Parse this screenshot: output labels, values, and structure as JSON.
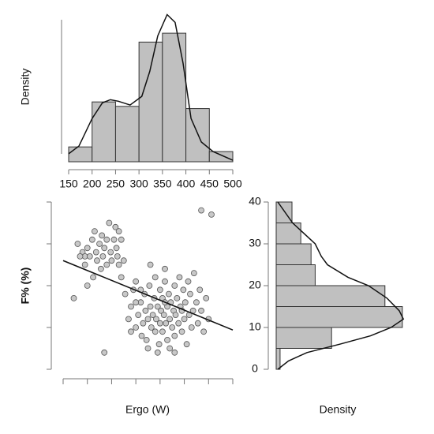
{
  "chart_data": [
    {
      "type": "histogram",
      "orientation": "vertical",
      "color": "#c0c0c0",
      "bins": [
        150,
        200,
        250,
        300,
        350,
        400,
        450,
        500
      ],
      "values": [
        0.00067,
        0.0027,
        0.0025,
        0.0054,
        0.0058,
        0.0024,
        0.00046
      ],
      "density": {
        "x": [
          150,
          172,
          200,
          222,
          239,
          256,
          281,
          306,
          323,
          340,
          360,
          377,
          394,
          411,
          433,
          458,
          500
        ],
        "y": [
          0.00036,
          0.00071,
          0.00195,
          0.00266,
          0.0028,
          0.00273,
          0.00256,
          0.00295,
          0.00408,
          0.00568,
          0.00664,
          0.00629,
          0.00444,
          0.00195,
          0.00089,
          0.00046,
          7e-05
        ]
      },
      "xlim": [
        150,
        500
      ],
      "xticks": [
        150,
        200,
        250,
        300,
        350,
        400,
        450,
        500
      ],
      "ylim": [
        0,
        0.0068
      ],
      "ylabel": "Density"
    },
    {
      "type": "scatter",
      "color": "#c8c8c8",
      "x": [
        180,
        190,
        195,
        200,
        205,
        210,
        215,
        218,
        220,
        225,
        230,
        232,
        235,
        240,
        245,
        248,
        250,
        255,
        258,
        260,
        262,
        265,
        270,
        275,
        240,
        228,
        212,
        200,
        195,
        185,
        172,
        265,
        270,
        278,
        285,
        290,
        295,
        300,
        300,
        305,
        310,
        312,
        315,
        318,
        320,
        322,
        325,
        328,
        330,
        332,
        335,
        338,
        340,
        340,
        342,
        345,
        348,
        350,
        350,
        352,
        355,
        355,
        358,
        360,
        360,
        362,
        365,
        365,
        368,
        370,
        370,
        372,
        375,
        378,
        380,
        380,
        382,
        385,
        388,
        390,
        392,
        395,
        398,
        400,
        402,
        405,
        408,
        410,
        412,
        415,
        418,
        420,
        425,
        428,
        432,
        435,
        440,
        445,
        450,
        330,
        310,
        345,
        380,
        290,
        300,
        325,
        360,
        395,
        435,
        456,
        235
      ],
      "y": [
        30,
        28,
        27,
        29,
        27,
        31,
        33,
        28,
        26,
        30,
        32,
        27,
        29,
        31,
        35,
        28,
        26,
        31,
        34,
        29,
        27,
        25,
        31,
        26,
        25,
        24,
        22,
        20,
        25,
        27,
        17,
        33,
        22,
        18,
        12,
        15,
        19,
        21,
        10,
        13,
        16,
        8,
        11,
        18,
        14,
        7,
        12,
        20,
        15,
        10,
        13,
        17,
        9,
        22,
        12,
        15,
        6,
        11,
        19,
        14,
        17,
        9,
        13,
        21,
        24,
        11,
        15,
        7,
        18,
        12,
        5,
        16,
        10,
        14,
        20,
        8,
        13,
        17,
        11,
        22,
        15,
        9,
        19,
        12,
        16,
        6,
        21,
        13,
        18,
        10,
        14,
        23,
        16,
        11,
        19,
        14,
        9,
        17,
        12,
        25,
        19,
        4,
        4,
        9,
        16,
        5,
        16,
        14,
        38,
        37,
        4
      ],
      "fit": {
        "x": [
          150,
          500
        ],
        "y": [
          26,
          9.4
        ]
      },
      "xlim": [
        150,
        500
      ],
      "xticks": [
        150,
        200,
        250,
        300,
        350,
        400,
        450,
        500
      ],
      "ylim": [
        0,
        40
      ],
      "yticks": [
        0,
        10,
        20,
        30,
        40
      ],
      "xlabel": "Ergo (W)",
      "ylabel": "F% (%)"
    },
    {
      "type": "histogram",
      "orientation": "horizontal",
      "color": "#c0c0c0",
      "bins": [
        0,
        5,
        10,
        15,
        20,
        25,
        30,
        35,
        40
      ],
      "values": [
        0.0019,
        0.027,
        0.0615,
        0.053,
        0.019,
        0.017,
        0.012,
        0.0077
      ],
      "density": {
        "x": [
          0,
          2,
          4,
          6,
          8,
          10,
          12,
          14,
          17,
          20,
          22,
          25,
          27,
          30,
          35,
          40
        ],
        "y": [
          0.0008,
          0.006,
          0.015,
          0.031,
          0.046,
          0.056,
          0.062,
          0.06,
          0.054,
          0.045,
          0.035,
          0.025,
          0.022,
          0.019,
          0.008,
          0.0008
        ]
      },
      "xlim": [
        0,
        0.065
      ],
      "ylim": [
        0,
        40
      ],
      "yticks": [
        0,
        10,
        20,
        30,
        40
      ],
      "xlabel": "Density"
    }
  ]
}
